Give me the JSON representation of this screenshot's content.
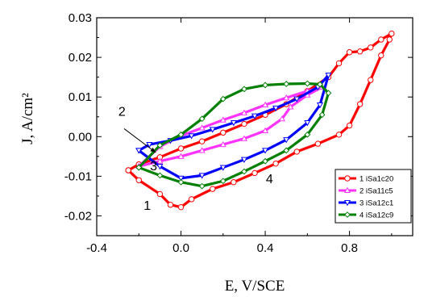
{
  "chart_data": {
    "type": "line",
    "xlabel": "E, V/SCE",
    "ylabel": "J, A/cm²",
    "xlim": [
      -0.4,
      1.1
    ],
    "ylim": [
      -0.025,
      0.03
    ],
    "x_ticks": [
      "-0.4",
      "0.0",
      "0.4",
      "0.8"
    ],
    "y_ticks": [
      "-0.02",
      "-0.01",
      "0.00",
      "0.01",
      "0.02",
      "0.03"
    ],
    "x_tick_values": [
      -0.4,
      0.0,
      0.4,
      0.8
    ],
    "y_tick_values": [
      -0.02,
      -0.01,
      0.0,
      0.01,
      0.02,
      0.03
    ],
    "grid": false,
    "legend_position": "bottom-right",
    "annotations": [
      {
        "text": "1",
        "x": -0.16,
        "y": -0.0185
      },
      {
        "text": "2",
        "x": -0.28,
        "y": 0.0053
      },
      {
        "text": "3",
        "x": -0.13,
        "y": -0.0085
      },
      {
        "text": "4",
        "x": 0.42,
        "y": -0.0118
      }
    ],
    "arrow": {
      "from": [
        -0.27,
        0.002
      ],
      "to": [
        -0.12,
        -0.004
      ]
    },
    "series": [
      {
        "name": "1 iSa1c20",
        "color": "#ff0000",
        "marker": "circle",
        "x": [
          -0.25,
          -0.2,
          -0.1,
          -0.05,
          0.0,
          0.05,
          0.15,
          0.25,
          0.35,
          0.45,
          0.55,
          0.65,
          0.75,
          0.8,
          0.85,
          0.9,
          0.95,
          0.99,
          1.0,
          0.95,
          0.9,
          0.85,
          0.8,
          0.75,
          0.7,
          0.6,
          0.5,
          0.4,
          0.3,
          0.2,
          0.1,
          0.0,
          -0.1,
          -0.2,
          -0.25
        ],
        "y": [
          -0.0085,
          -0.011,
          -0.0145,
          -0.0172,
          -0.0178,
          -0.0158,
          -0.0132,
          -0.0115,
          -0.0092,
          -0.0068,
          -0.0038,
          -0.0018,
          0.0005,
          0.0028,
          0.0082,
          0.0143,
          0.0205,
          0.0245,
          0.026,
          0.0245,
          0.0225,
          0.0215,
          0.0213,
          0.0185,
          0.015,
          0.0115,
          0.0082,
          0.0055,
          0.0032,
          0.001,
          -0.0012,
          -0.003,
          -0.0052,
          -0.007,
          -0.0085
        ]
      },
      {
        "name": "2 iSa11c5",
        "color": "#ff33ff",
        "marker": "triangle-up",
        "x": [
          -0.2,
          -0.1,
          0.0,
          0.1,
          0.2,
          0.3,
          0.4,
          0.48,
          0.52,
          0.6,
          0.67,
          0.6,
          0.5,
          0.4,
          0.3,
          0.2,
          0.1,
          0.0,
          -0.1,
          -0.2
        ],
        "y": [
          -0.0075,
          -0.0062,
          -0.005,
          -0.0035,
          -0.002,
          -0.0005,
          0.0015,
          0.0045,
          0.0075,
          0.0105,
          0.0125,
          0.0115,
          0.0098,
          0.008,
          0.006,
          0.0042,
          0.0022,
          0.0002,
          -0.0025,
          -0.0075
        ]
      },
      {
        "name": "3 iSa12c1",
        "color": "#0000ff",
        "marker": "triangle-down",
        "x": [
          -0.2,
          -0.1,
          0.0,
          0.1,
          0.2,
          0.3,
          0.4,
          0.5,
          0.6,
          0.66,
          0.7,
          0.65,
          0.55,
          0.45,
          0.35,
          0.25,
          0.15,
          0.05,
          -0.05,
          -0.15,
          -0.2
        ],
        "y": [
          -0.0035,
          -0.0075,
          -0.0105,
          -0.0098,
          -0.0078,
          -0.0058,
          -0.0035,
          -0.0008,
          0.0035,
          0.008,
          0.0155,
          0.0125,
          0.0095,
          0.0072,
          0.0052,
          0.0035,
          0.0018,
          0.0002,
          -0.001,
          -0.002,
          -0.0035
        ]
      },
      {
        "name": "4 iSa12c9",
        "color": "#008000",
        "marker": "diamond",
        "x": [
          -0.2,
          -0.1,
          0.0,
          0.1,
          0.2,
          0.3,
          0.4,
          0.5,
          0.6,
          0.67,
          0.7,
          0.66,
          0.6,
          0.5,
          0.4,
          0.3,
          0.2,
          0.1,
          0.0,
          -0.1,
          -0.2
        ],
        "y": [
          -0.0078,
          -0.0098,
          -0.0115,
          -0.0125,
          -0.0112,
          -0.0088,
          -0.0062,
          -0.0035,
          0.0005,
          0.0055,
          0.011,
          0.0132,
          0.0134,
          0.0133,
          0.013,
          0.012,
          0.0095,
          0.0045,
          0.0005,
          -0.0022,
          -0.0078
        ]
      }
    ]
  }
}
